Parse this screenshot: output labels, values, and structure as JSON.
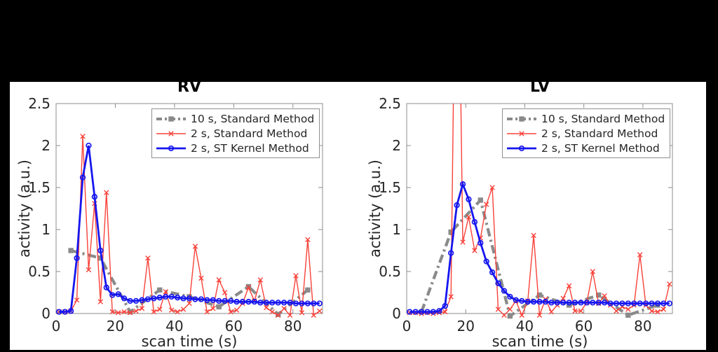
{
  "window": {
    "background": "#000000",
    "figure_background": "#ffffff"
  },
  "colors": {
    "gray_series": "#8a8a8a",
    "red_series": "#f8423a",
    "blue_series": "#1616ef",
    "axis": "#8c8c8c",
    "text": "#262626",
    "legend_border": "#8f8f8f"
  },
  "legend": {
    "position": "top-right",
    "items": [
      {
        "label": "10 s, Standard Method",
        "series": "gray",
        "marker": "square",
        "line_style": "dash-dot"
      },
      {
        "label": "2 s, Standard Method",
        "series": "red",
        "marker": "x",
        "line_style": "solid"
      },
      {
        "label": "2 s, ST Kernel Method",
        "series": "blue",
        "marker": "circle",
        "line_style": "solid"
      }
    ]
  },
  "chart_data": [
    {
      "type": "line",
      "title": "RV",
      "xlabel": "scan time (s)",
      "ylabel": "activity (a.u.)",
      "xlim": [
        0,
        90
      ],
      "ylim": [
        0,
        2.5
      ],
      "grid": false,
      "xticks": [
        0,
        20,
        40,
        60,
        80
      ],
      "xtick_labels": [
        "0",
        "20",
        "40",
        "60",
        "80"
      ],
      "yticks": [
        0,
        0.5,
        1,
        1.5,
        2,
        2.5
      ],
      "ytick_labels": [
        "0",
        "0.5",
        "1",
        "1.5",
        "2",
        "2.5"
      ],
      "series": [
        {
          "name": "10 s, Standard Method",
          "color_key": "gray_series",
          "marker": "square",
          "line_style": "dash-dot",
          "x": [
            5,
            15,
            25,
            35,
            45,
            55,
            65,
            75,
            85
          ],
          "y": [
            0.75,
            0.66,
            0.02,
            0.28,
            0.2,
            0.08,
            0.32,
            -0.01,
            0.28
          ]
        },
        {
          "name": "2 s, Standard Method",
          "color_key": "red_series",
          "marker": "x",
          "line_style": "solid",
          "x": [
            1,
            3,
            5,
            7,
            9,
            11,
            13,
            15,
            17,
            19,
            21,
            23,
            25,
            27,
            29,
            31,
            33,
            35,
            37,
            39,
            41,
            43,
            45,
            47,
            49,
            51,
            53,
            55,
            57,
            59,
            61,
            63,
            65,
            67,
            69,
            71,
            73,
            75,
            77,
            79,
            81,
            83,
            85,
            87,
            89
          ],
          "y": [
            0.02,
            0.02,
            0.03,
            0.16,
            2.11,
            0.52,
            1.31,
            0.14,
            1.44,
            0.02,
            0.01,
            0.02,
            0.01,
            0.03,
            0.06,
            0.66,
            0.02,
            0.05,
            0.26,
            0.04,
            0.02,
            0.05,
            0.12,
            0.8,
            0.42,
            0.02,
            0.06,
            0.4,
            0.25,
            0.02,
            0.04,
            0.12,
            0.31,
            0.15,
            0.4,
            0.07,
            0.02,
            -0.02,
            0.06,
            -0.02,
            0.45,
            0.01,
            0.88,
            -0.02,
            0.03
          ]
        },
        {
          "name": "2 s, ST Kernel Method",
          "color_key": "blue_series",
          "marker": "circle",
          "line_style": "solid",
          "x": [
            1,
            3,
            5,
            7,
            9,
            11,
            13,
            15,
            17,
            19,
            21,
            23,
            25,
            27,
            29,
            31,
            33,
            35,
            37,
            39,
            41,
            43,
            45,
            47,
            49,
            51,
            53,
            55,
            57,
            59,
            61,
            63,
            65,
            67,
            69,
            71,
            73,
            75,
            77,
            79,
            81,
            83,
            85,
            87,
            89
          ],
          "y": [
            0.02,
            0.02,
            0.03,
            0.66,
            1.62,
            2.0,
            1.39,
            0.75,
            0.31,
            0.22,
            0.23,
            0.18,
            0.15,
            0.15,
            0.16,
            0.17,
            0.18,
            0.19,
            0.2,
            0.2,
            0.19,
            0.18,
            0.18,
            0.17,
            0.17,
            0.16,
            0.16,
            0.15,
            0.15,
            0.15,
            0.14,
            0.14,
            0.14,
            0.14,
            0.13,
            0.13,
            0.13,
            0.13,
            0.13,
            0.13,
            0.12,
            0.12,
            0.12,
            0.12,
            0.12
          ]
        }
      ]
    },
    {
      "type": "line",
      "title": "LV",
      "xlabel": "scan time (s)",
      "ylabel": "activity (a.u.)",
      "xlim": [
        0,
        90
      ],
      "ylim": [
        0,
        2.5
      ],
      "grid": false,
      "xticks": [
        0,
        20,
        40,
        60,
        80
      ],
      "xtick_labels": [
        "0",
        "20",
        "40",
        "60",
        "80"
      ],
      "yticks": [
        0,
        0.5,
        1,
        1.5,
        2,
        2.5
      ],
      "ytick_labels": [
        "0",
        "0.5",
        "1",
        "1.5",
        "2",
        "2.5"
      ],
      "series": [
        {
          "name": "10 s, Standard Method",
          "color_key": "gray_series",
          "marker": "square",
          "line_style": "dash-dot",
          "x": [
            5,
            15,
            25,
            35,
            45,
            55,
            65,
            75,
            85
          ],
          "y": [
            0.02,
            0.97,
            1.35,
            -0.03,
            0.22,
            0.1,
            0.22,
            -0.02,
            0.1
          ]
        },
        {
          "name": "2 s, Standard Method",
          "color_key": "red_series",
          "marker": "x",
          "line_style": "solid",
          "x": [
            1,
            3,
            5,
            7,
            9,
            11,
            13,
            15,
            17,
            19,
            21,
            23,
            25,
            27,
            29,
            31,
            33,
            35,
            37,
            39,
            41,
            43,
            45,
            47,
            49,
            51,
            53,
            55,
            57,
            59,
            61,
            63,
            65,
            67,
            69,
            71,
            73,
            75,
            77,
            79,
            81,
            83,
            85,
            87,
            89
          ],
          "y": [
            0.01,
            0.01,
            0.0,
            0.01,
            0.0,
            0.01,
            0.02,
            0.2,
            6.0,
            0.85,
            1.15,
            0.75,
            0.9,
            1.3,
            1.5,
            0.05,
            -0.02,
            0.05,
            0.15,
            -0.02,
            0.15,
            0.93,
            -0.02,
            0.17,
            0.02,
            0.1,
            0.18,
            0.33,
            0.03,
            0.03,
            0.13,
            0.5,
            0.12,
            0.21,
            0.1,
            0.03,
            0.08,
            0.05,
            0.1,
            0.7,
            0.1,
            0.03,
            0.02,
            0.05,
            0.35
          ]
        },
        {
          "name": "2 s, ST Kernel Method",
          "color_key": "blue_series",
          "marker": "circle",
          "line_style": "solid",
          "x": [
            1,
            3,
            5,
            7,
            9,
            11,
            13,
            15,
            17,
            19,
            21,
            23,
            25,
            27,
            29,
            31,
            33,
            35,
            37,
            39,
            41,
            43,
            45,
            47,
            49,
            51,
            53,
            55,
            57,
            59,
            61,
            63,
            65,
            67,
            69,
            71,
            73,
            75,
            77,
            79,
            81,
            83,
            85,
            87,
            89
          ],
          "y": [
            0.02,
            0.02,
            0.02,
            0.02,
            0.02,
            0.03,
            0.09,
            0.72,
            1.29,
            1.54,
            1.36,
            1.09,
            0.84,
            0.62,
            0.49,
            0.36,
            0.27,
            0.2,
            0.16,
            0.15,
            0.14,
            0.14,
            0.14,
            0.14,
            0.13,
            0.13,
            0.13,
            0.13,
            0.13,
            0.13,
            0.13,
            0.13,
            0.13,
            0.13,
            0.12,
            0.12,
            0.12,
            0.12,
            0.12,
            0.12,
            0.12,
            0.12,
            0.12,
            0.12,
            0.12
          ]
        }
      ]
    }
  ]
}
